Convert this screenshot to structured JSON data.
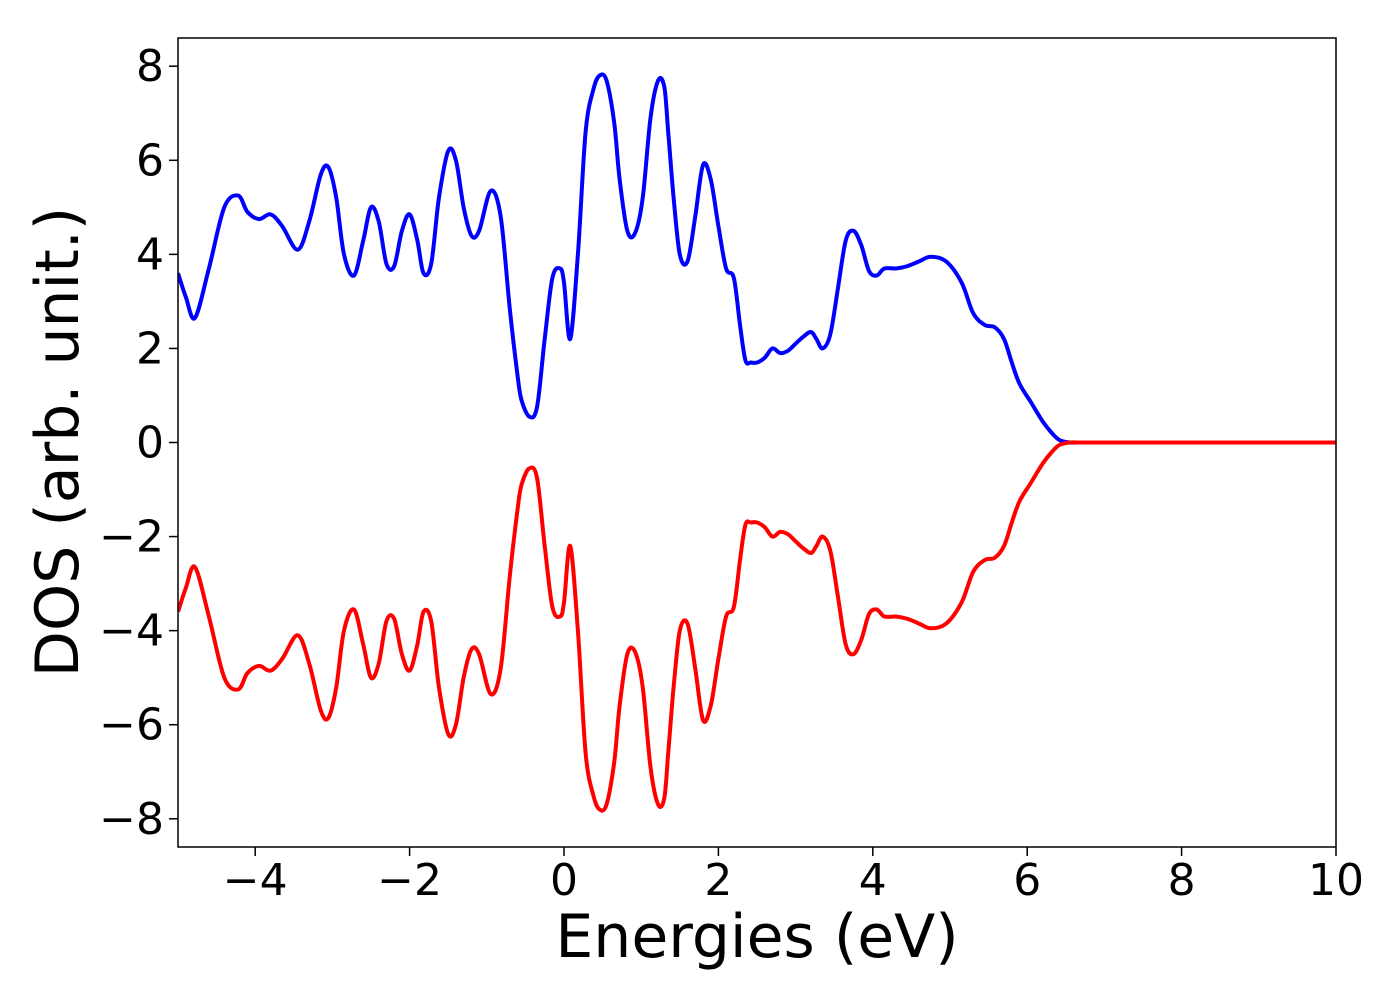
{
  "chart_data": {
    "type": "line",
    "title": "",
    "xlabel": "Energies (eV)",
    "ylabel": "DOS (arb. unit.)",
    "xlim": [
      -5,
      10
    ],
    "ylim": [
      -8.6,
      8.6
    ],
    "xticks": [
      -4,
      -2,
      0,
      2,
      4,
      6,
      8,
      10
    ],
    "xtick_labels": [
      "−4",
      "−2",
      "0",
      "2",
      "4",
      "6",
      "8",
      "10"
    ],
    "yticks": [
      8,
      6,
      4,
      2,
      0,
      -2,
      -4,
      -6,
      -8
    ],
    "ytick_labels": [
      "8",
      "6",
      "4",
      "2",
      "0",
      "−2",
      "−4",
      "−6",
      "−8"
    ],
    "grid": false,
    "legend": "none",
    "series": [
      {
        "color": "#0000ff",
        "x": [
          -5.0,
          -4.9,
          -4.78,
          -4.6,
          -4.4,
          -4.22,
          -4.1,
          -3.95,
          -3.8,
          -3.65,
          -3.45,
          -3.3,
          -3.15,
          -3.05,
          -2.95,
          -2.85,
          -2.72,
          -2.6,
          -2.5,
          -2.4,
          -2.3,
          -2.2,
          -2.1,
          -2.0,
          -1.9,
          -1.82,
          -1.72,
          -1.62,
          -1.5,
          -1.4,
          -1.3,
          -1.2,
          -1.1,
          -0.95,
          -0.82,
          -0.7,
          -0.6,
          -0.55,
          -0.45,
          -0.35,
          -0.25,
          -0.15,
          -0.05,
          0.0,
          0.08,
          0.18,
          0.28,
          0.38,
          0.46,
          0.55,
          0.65,
          0.72,
          0.82,
          0.92,
          1.02,
          1.12,
          1.22,
          1.3,
          1.35,
          1.42,
          1.5,
          1.6,
          1.7,
          1.8,
          1.9,
          2.0,
          2.1,
          2.2,
          2.28,
          2.35,
          2.42,
          2.5,
          2.6,
          2.7,
          2.8,
          2.9,
          3.0,
          3.1,
          3.2,
          3.27,
          3.35,
          3.45,
          3.55,
          3.65,
          3.75,
          3.85,
          3.95,
          4.05,
          4.15,
          4.3,
          4.45,
          4.6,
          4.75,
          4.95,
          5.15,
          5.3,
          5.45,
          5.58,
          5.7,
          5.8,
          5.9,
          6.05,
          6.2,
          6.32,
          6.42,
          6.55,
          6.65,
          6.78,
          6.9,
          7.05,
          7.2,
          7.35,
          7.5,
          7.62,
          7.75,
          7.85,
          7.95,
          8.05,
          8.15,
          8.25,
          8.35,
          8.45,
          8.55,
          8.65,
          8.75,
          8.85,
          8.95,
          9.05,
          9.15,
          9.25,
          9.35,
          9.5,
          10.0
        ],
        "y": [
          3.6,
          3.1,
          2.65,
          3.7,
          5.0,
          5.25,
          4.9,
          4.75,
          4.85,
          4.6,
          4.1,
          4.7,
          5.7,
          5.85,
          5.2,
          4.0,
          3.55,
          4.3,
          5.0,
          4.7,
          3.8,
          3.75,
          4.5,
          4.85,
          4.3,
          3.6,
          3.8,
          5.2,
          6.2,
          6.0,
          5.0,
          4.4,
          4.5,
          5.35,
          4.8,
          2.8,
          1.4,
          0.9,
          0.55,
          0.75,
          2.2,
          3.5,
          3.7,
          3.4,
          2.2,
          4.0,
          6.6,
          7.5,
          7.8,
          7.7,
          6.8,
          5.6,
          4.5,
          4.45,
          5.2,
          6.9,
          7.7,
          7.55,
          6.6,
          5.2,
          4.0,
          3.85,
          4.8,
          5.9,
          5.6,
          4.6,
          3.7,
          3.5,
          2.5,
          1.75,
          1.7,
          1.7,
          1.8,
          2.0,
          1.9,
          1.95,
          2.1,
          2.25,
          2.35,
          2.2,
          2.0,
          2.3,
          3.3,
          4.3,
          4.5,
          4.2,
          3.65,
          3.55,
          3.7,
          3.7,
          3.75,
          3.85,
          3.95,
          3.85,
          3.4,
          2.75,
          2.5,
          2.45,
          2.2,
          1.7,
          1.25,
          0.85,
          0.45,
          0.2,
          0.05,
          0.0,
          0.0,
          0.0,
          0.0,
          0.0,
          0.0,
          0.0,
          0.0,
          0.0,
          0.0,
          0.0,
          0.0,
          0.0,
          0.0,
          0.0,
          0.0,
          0.0,
          0.0,
          0.0,
          0.0,
          0.0,
          0.0,
          0.0,
          0.0,
          0.0,
          0.0,
          0.0,
          0.0
        ]
      },
      {
        "color": "#ff0000",
        "x": [
          -5.0,
          -4.9,
          -4.78,
          -4.6,
          -4.4,
          -4.22,
          -4.1,
          -3.95,
          -3.8,
          -3.65,
          -3.45,
          -3.3,
          -3.15,
          -3.05,
          -2.95,
          -2.85,
          -2.72,
          -2.6,
          -2.5,
          -2.4,
          -2.3,
          -2.2,
          -2.1,
          -2.0,
          -1.9,
          -1.82,
          -1.72,
          -1.62,
          -1.5,
          -1.4,
          -1.3,
          -1.2,
          -1.1,
          -0.95,
          -0.82,
          -0.7,
          -0.6,
          -0.55,
          -0.45,
          -0.35,
          -0.25,
          -0.15,
          -0.05,
          0.0,
          0.08,
          0.18,
          0.28,
          0.38,
          0.46,
          0.55,
          0.65,
          0.72,
          0.82,
          0.92,
          1.02,
          1.12,
          1.22,
          1.3,
          1.35,
          1.42,
          1.5,
          1.6,
          1.7,
          1.8,
          1.9,
          2.0,
          2.1,
          2.2,
          2.28,
          2.35,
          2.42,
          2.5,
          2.6,
          2.7,
          2.8,
          2.9,
          3.0,
          3.1,
          3.2,
          3.27,
          3.35,
          3.45,
          3.55,
          3.65,
          3.75,
          3.85,
          3.95,
          4.05,
          4.15,
          4.3,
          4.45,
          4.6,
          4.75,
          4.95,
          5.15,
          5.3,
          5.45,
          5.58,
          5.7,
          5.8,
          5.9,
          6.05,
          6.2,
          6.32,
          6.42,
          6.55,
          6.65,
          6.78,
          6.9,
          7.05,
          7.2,
          7.35,
          7.5,
          7.62,
          7.75,
          7.85,
          7.95,
          8.05,
          8.15,
          8.25,
          8.35,
          8.45,
          8.55,
          8.65,
          8.75,
          8.85,
          8.95,
          9.05,
          9.15,
          9.25,
          9.35,
          9.5,
          10.0
        ],
        "y": [
          -3.6,
          -3.1,
          -2.65,
          -3.7,
          -5.0,
          -5.25,
          -4.9,
          -4.75,
          -4.85,
          -4.6,
          -4.1,
          -4.7,
          -5.7,
          -5.85,
          -5.2,
          -4.0,
          -3.55,
          -4.3,
          -5.0,
          -4.7,
          -3.8,
          -3.75,
          -4.5,
          -4.85,
          -4.3,
          -3.6,
          -3.8,
          -5.2,
          -6.2,
          -6.0,
          -5.0,
          -4.4,
          -4.5,
          -5.35,
          -4.8,
          -2.8,
          -1.4,
          -0.9,
          -0.55,
          -0.75,
          -2.2,
          -3.5,
          -3.7,
          -3.4,
          -2.2,
          -4.0,
          -6.6,
          -7.5,
          -7.8,
          -7.7,
          -6.8,
          -5.6,
          -4.5,
          -4.45,
          -5.2,
          -6.9,
          -7.7,
          -7.55,
          -6.6,
          -5.2,
          -4.0,
          -3.85,
          -4.8,
          -5.9,
          -5.6,
          -4.6,
          -3.7,
          -3.5,
          -2.5,
          -1.75,
          -1.7,
          -1.7,
          -1.8,
          -2.0,
          -1.9,
          -1.95,
          -2.1,
          -2.25,
          -2.35,
          -2.2,
          -2.0,
          -2.3,
          -3.3,
          -4.3,
          -4.5,
          -4.2,
          -3.65,
          -3.55,
          -3.7,
          -3.7,
          -3.75,
          -3.85,
          -3.95,
          -3.85,
          -3.4,
          -2.75,
          -2.5,
          -2.45,
          -2.2,
          -1.7,
          -1.25,
          -0.85,
          -0.45,
          -0.2,
          -0.05,
          0.0,
          0.0,
          0.0,
          0.0,
          0.0,
          0.0,
          0.0,
          0.0,
          0.0,
          0.0,
          0.0,
          0.0,
          0.0,
          0.0,
          0.0,
          0.0,
          0.0,
          0.0,
          0.0,
          0.0,
          0.0,
          0.0,
          0.0,
          0.0,
          0.0,
          0.0,
          0.0,
          0.0
        ]
      }
    ]
  }
}
